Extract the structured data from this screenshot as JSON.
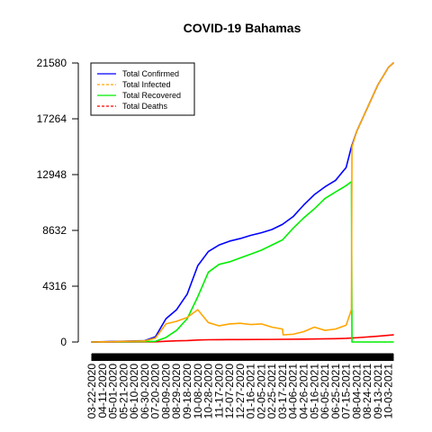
{
  "chart_data": {
    "type": "line",
    "title": "COVID-19 Bahamas",
    "xlabel": "",
    "ylabel": "",
    "ylim": [
      0,
      21580
    ],
    "y_ticks": [
      0,
      4316,
      8632,
      12948,
      17264,
      21580
    ],
    "x_tick_labels": [
      "03-22-2020",
      "04-11-2020",
      "05-01-2020",
      "05-21-2020",
      "06-10-2020",
      "06-30-2020",
      "07-20-2020",
      "08-09-2020",
      "08-29-2020",
      "09-18-2020",
      "10-08-2020",
      "10-28-2020",
      "11-17-2020",
      "12-07-2020",
      "12-27-2020",
      "01-16-2021",
      "02-05-2021",
      "02-25-2021",
      "03-17-2021",
      "04-06-2021",
      "04-26-2021",
      "05-16-2021",
      "06-05-2021",
      "06-25-2021",
      "07-15-2021",
      "08-04-2021",
      "08-24-2021",
      "09-13-2021",
      "10-03-2021"
    ],
    "legend_position": "top-left",
    "grid": false,
    "series": [
      {
        "name": "Total Confirmed",
        "color": "#0000ff",
        "line_style": "solid",
        "points": [
          [
            "03-22-2020",
            0
          ],
          [
            "06-30-2020",
            104
          ],
          [
            "07-20-2020",
            400
          ],
          [
            "08-09-2020",
            1800
          ],
          [
            "08-29-2020",
            2500
          ],
          [
            "09-18-2020",
            3700
          ],
          [
            "10-08-2020",
            5900
          ],
          [
            "10-28-2020",
            7000
          ],
          [
            "11-17-2020",
            7500
          ],
          [
            "12-07-2020",
            7800
          ],
          [
            "12-27-2020",
            8000
          ],
          [
            "01-16-2021",
            8250
          ],
          [
            "02-05-2021",
            8450
          ],
          [
            "02-25-2021",
            8700
          ],
          [
            "03-17-2021",
            9100
          ],
          [
            "04-06-2021",
            9700
          ],
          [
            "04-26-2021",
            10600
          ],
          [
            "05-16-2021",
            11400
          ],
          [
            "06-05-2021",
            12000
          ],
          [
            "06-25-2021",
            12500
          ],
          [
            "07-15-2021",
            13500
          ],
          [
            "07-25-2021",
            15100
          ],
          [
            "08-04-2021",
            16300
          ],
          [
            "08-24-2021",
            18100
          ],
          [
            "09-13-2021",
            19900
          ],
          [
            "10-03-2021",
            21250
          ],
          [
            "10-12-2021",
            21580
          ]
        ]
      },
      {
        "name": "Total Infected",
        "color": "#ffa500",
        "line_style": "dashed",
        "points": [
          [
            "03-22-2020",
            0
          ],
          [
            "06-30-2020",
            80
          ],
          [
            "07-20-2020",
            300
          ],
          [
            "08-09-2020",
            1400
          ],
          [
            "08-29-2020",
            1600
          ],
          [
            "09-18-2020",
            1900
          ],
          [
            "10-08-2020",
            2500
          ],
          [
            "10-28-2020",
            1500
          ],
          [
            "11-17-2020",
            1250
          ],
          [
            "12-07-2020",
            1400
          ],
          [
            "12-27-2020",
            1450
          ],
          [
            "01-16-2021",
            1350
          ],
          [
            "02-05-2021",
            1400
          ],
          [
            "02-25-2021",
            1150
          ],
          [
            "03-17-2021",
            1000
          ],
          [
            "03-18-2021",
            550
          ],
          [
            "04-06-2021",
            600
          ],
          [
            "04-26-2021",
            800
          ],
          [
            "05-16-2021",
            1150
          ],
          [
            "06-05-2021",
            900
          ],
          [
            "06-25-2021",
            1000
          ],
          [
            "07-15-2021",
            1300
          ],
          [
            "07-25-2021",
            2500
          ],
          [
            "07-26-2021",
            15100
          ],
          [
            "08-04-2021",
            16300
          ],
          [
            "08-24-2021",
            18100
          ],
          [
            "09-13-2021",
            19900
          ],
          [
            "10-03-2021",
            21250
          ],
          [
            "10-12-2021",
            21580
          ]
        ]
      },
      {
        "name": "Total Recovered",
        "color": "#00ee00",
        "line_style": "solid",
        "points": [
          [
            "03-22-2020",
            0
          ],
          [
            "07-20-2020",
            50
          ],
          [
            "08-09-2020",
            350
          ],
          [
            "08-29-2020",
            900
          ],
          [
            "09-18-2020",
            1800
          ],
          [
            "10-08-2020",
            3500
          ],
          [
            "10-28-2020",
            5400
          ],
          [
            "11-17-2020",
            6000
          ],
          [
            "12-07-2020",
            6200
          ],
          [
            "12-27-2020",
            6500
          ],
          [
            "01-16-2021",
            6800
          ],
          [
            "02-05-2021",
            7100
          ],
          [
            "02-25-2021",
            7500
          ],
          [
            "03-17-2021",
            7900
          ],
          [
            "04-06-2021",
            8800
          ],
          [
            "04-26-2021",
            9600
          ],
          [
            "05-16-2021",
            10300
          ],
          [
            "06-05-2021",
            11100
          ],
          [
            "06-25-2021",
            11600
          ],
          [
            "07-15-2021",
            12100
          ],
          [
            "07-25-2021",
            12400
          ],
          [
            "07-26-2021",
            0
          ],
          [
            "10-12-2021",
            0
          ]
        ]
      },
      {
        "name": "Total Deaths",
        "color": "#ff0000",
        "line_style": "dashed",
        "points": [
          [
            "03-22-2020",
            0
          ],
          [
            "06-30-2020",
            11
          ],
          [
            "07-20-2020",
            14
          ],
          [
            "08-09-2020",
            60
          ],
          [
            "08-29-2020",
            90
          ],
          [
            "09-18-2020",
            110
          ],
          [
            "10-08-2020",
            150
          ],
          [
            "10-28-2020",
            175
          ],
          [
            "11-17-2020",
            180
          ],
          [
            "12-27-2020",
            190
          ],
          [
            "02-25-2021",
            200
          ],
          [
            "04-26-2021",
            220
          ],
          [
            "06-25-2021",
            260
          ],
          [
            "07-15-2021",
            280
          ],
          [
            "08-04-2021",
            330
          ],
          [
            "09-13-2021",
            450
          ],
          [
            "10-12-2021",
            550
          ]
        ]
      }
    ]
  }
}
